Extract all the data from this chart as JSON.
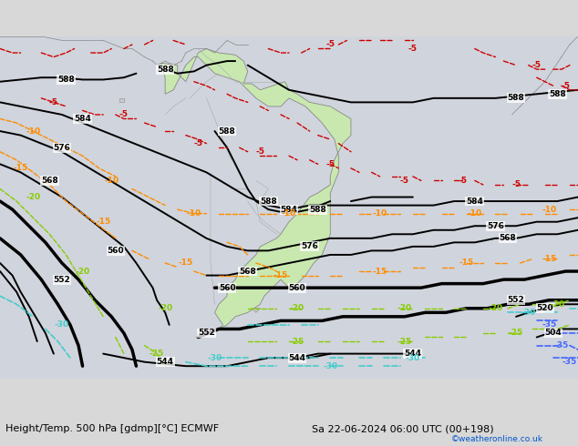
{
  "title_left": "Height/Temp. 500 hPa [gdmp][°C] ECMWF",
  "title_right": "Sa 22-06-2024 06:00 UTC (00+198)",
  "credit": "©weatheronline.co.uk",
  "bg_color": "#d8d8d8",
  "ocean_color": "#d0d4dc",
  "land_color": "#e8e8e8",
  "sa_color": "#c8e8b0",
  "gray_land_color": "#c8c8c8",
  "label_fontsize": 6.5,
  "title_fontsize": 8,
  "credit_fontsize": 6.5,
  "credit_color": "#0055cc"
}
